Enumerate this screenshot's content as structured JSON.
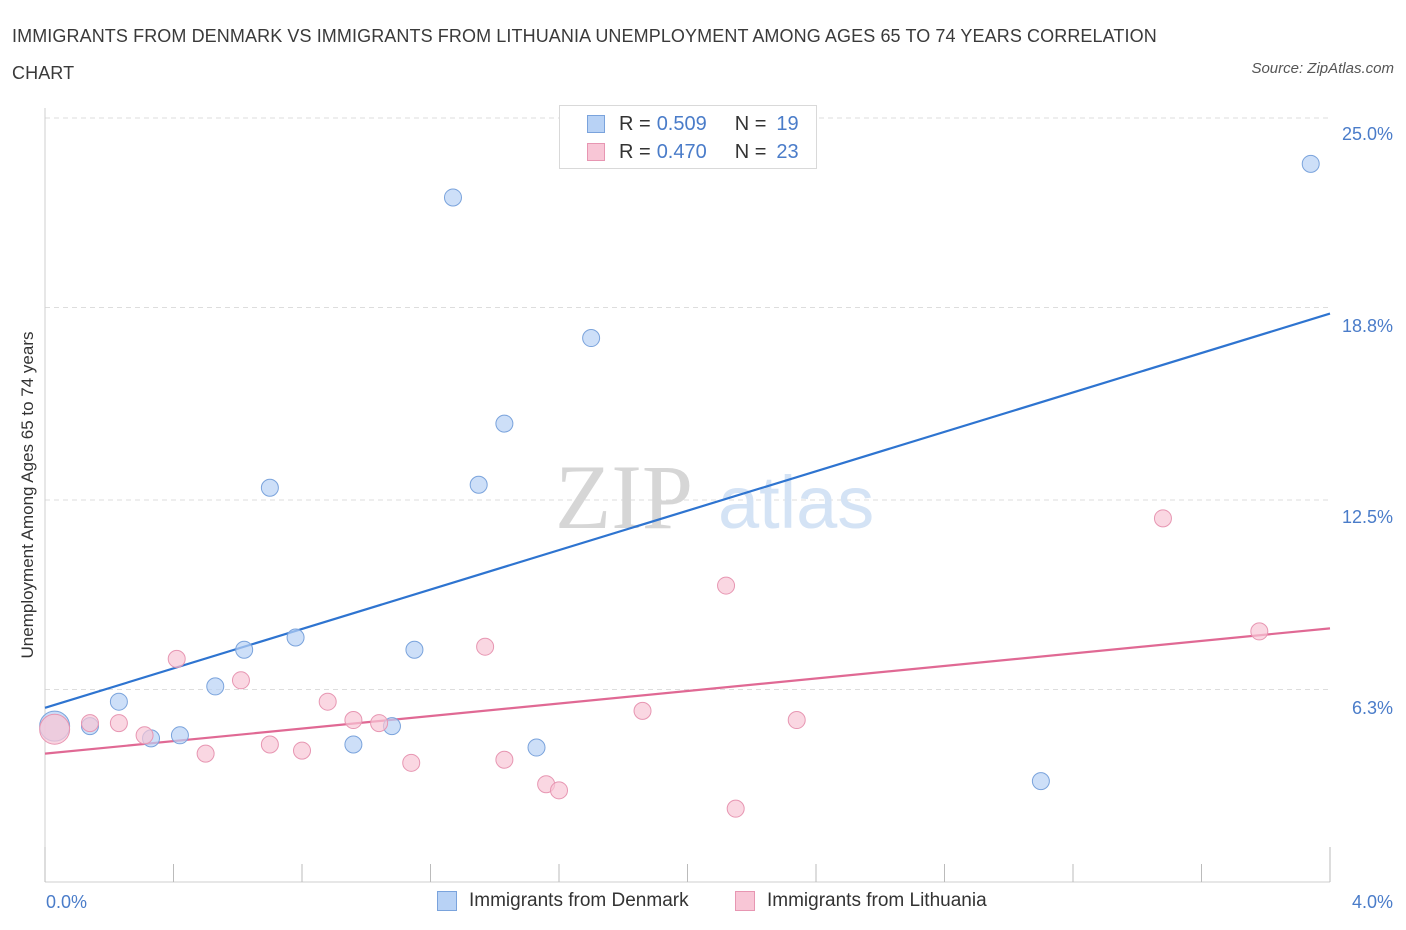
{
  "title": "IMMIGRANTS FROM DENMARK VS IMMIGRANTS FROM LITHUANIA UNEMPLOYMENT AMONG AGES 65 TO 74 YEARS CORRELATION CHART",
  "source": "Source: ZipAtlas.com",
  "watermark": {
    "zip": "ZIP",
    "atlas": "atlas"
  },
  "legend": {
    "denmark": {
      "r_label": "R = ",
      "r_value": "0.509",
      "n_label": "N = ",
      "n_value": "19"
    },
    "lithuania": {
      "r_label": "R = ",
      "r_value": "0.470",
      "n_label": "N = ",
      "n_value": "23"
    }
  },
  "colors": {
    "denmark_fill": "#b8d2f5",
    "denmark_stroke": "#7aa3dc",
    "denmark_line": "#2e74d0",
    "lithuania_fill": "#f8c6d6",
    "lithuania_stroke": "#e796b2",
    "lithuania_line": "#e06994",
    "grid": "#dddddd",
    "tick_label": "#4a7cc9"
  },
  "chart_data": {
    "type": "scatter",
    "title": "IMMIGRANTS FROM DENMARK VS IMMIGRANTS FROM LITHUANIA UNEMPLOYMENT AMONG AGES 65 TO 74 YEARS CORRELATION CHART",
    "xlabel": "",
    "ylabel": "Unemployment Among Ages 65 to 74 years",
    "xlim": [
      0,
      4.0
    ],
    "ylim": [
      0,
      25.0
    ],
    "x_tick_labels": [
      "0.0%",
      "4.0%"
    ],
    "y_ticks": [
      6.3,
      12.5,
      18.8,
      25.0
    ],
    "y_tick_labels": [
      "6.3%",
      "12.5%",
      "18.8%",
      "25.0%"
    ],
    "grid": true,
    "legend_position": "bottom",
    "series": [
      {
        "name": "Immigrants from Denmark",
        "color": "#b8d2f5",
        "points": [
          {
            "x": 0.03,
            "y": 5.1,
            "big": true
          },
          {
            "x": 0.14,
            "y": 5.1
          },
          {
            "x": 0.23,
            "y": 5.9
          },
          {
            "x": 0.33,
            "y": 4.7
          },
          {
            "x": 0.42,
            "y": 4.8
          },
          {
            "x": 0.53,
            "y": 6.4
          },
          {
            "x": 0.62,
            "y": 7.6
          },
          {
            "x": 0.7,
            "y": 12.9
          },
          {
            "x": 0.78,
            "y": 8.0
          },
          {
            "x": 0.96,
            "y": 4.5
          },
          {
            "x": 1.08,
            "y": 5.1
          },
          {
            "x": 1.15,
            "y": 7.6
          },
          {
            "x": 1.27,
            "y": 22.4
          },
          {
            "x": 1.35,
            "y": 13.0
          },
          {
            "x": 1.43,
            "y": 15.0
          },
          {
            "x": 1.53,
            "y": 4.4
          },
          {
            "x": 1.7,
            "y": 17.8
          },
          {
            "x": 3.1,
            "y": 3.3
          },
          {
            "x": 3.94,
            "y": 23.5
          }
        ],
        "trend": {
          "x0": 0.0,
          "y0": 5.7,
          "x1": 4.0,
          "y1": 18.6
        }
      },
      {
        "name": "Immigrants from Lithuania",
        "color": "#f8c6d6",
        "points": [
          {
            "x": 0.03,
            "y": 5.0,
            "big": true
          },
          {
            "x": 0.14,
            "y": 5.2
          },
          {
            "x": 0.23,
            "y": 5.2
          },
          {
            "x": 0.31,
            "y": 4.8
          },
          {
            "x": 0.41,
            "y": 7.3
          },
          {
            "x": 0.5,
            "y": 4.2
          },
          {
            "x": 0.61,
            "y": 6.6
          },
          {
            "x": 0.7,
            "y": 4.5
          },
          {
            "x": 0.8,
            "y": 4.3
          },
          {
            "x": 0.88,
            "y": 5.9
          },
          {
            "x": 0.96,
            "y": 5.3
          },
          {
            "x": 1.04,
            "y": 5.2
          },
          {
            "x": 1.14,
            "y": 3.9
          },
          {
            "x": 1.37,
            "y": 7.7
          },
          {
            "x": 1.43,
            "y": 4.0
          },
          {
            "x": 1.56,
            "y": 3.2
          },
          {
            "x": 1.6,
            "y": 3.0
          },
          {
            "x": 1.86,
            "y": 5.6
          },
          {
            "x": 2.12,
            "y": 9.7
          },
          {
            "x": 2.15,
            "y": 2.4
          },
          {
            "x": 2.34,
            "y": 5.3
          },
          {
            "x": 3.48,
            "y": 11.9
          },
          {
            "x": 3.78,
            "y": 8.2
          }
        ],
        "trend": {
          "x0": 0.0,
          "y0": 4.2,
          "x1": 4.0,
          "y1": 8.3
        }
      }
    ]
  },
  "bottom_legend": {
    "denmark": "Immigrants from Denmark",
    "lithuania": "Immigrants from Lithuania"
  }
}
